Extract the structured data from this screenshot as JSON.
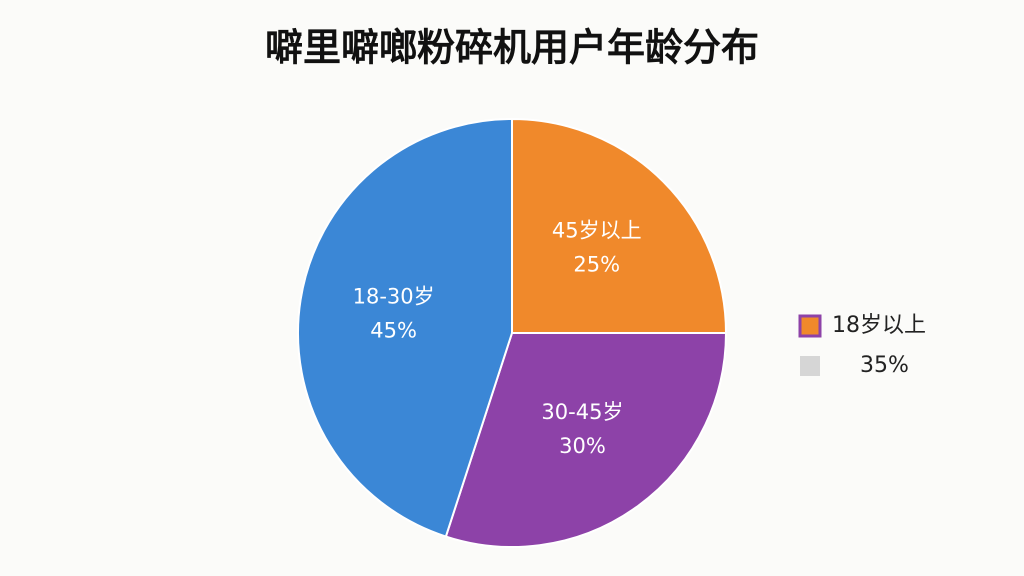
{
  "chart_data": {
    "type": "pie",
    "title": "噼里噼啷粉碎机用户年龄分布",
    "categories": [
      "45岁以上",
      "30-45岁",
      "18-30岁"
    ],
    "values": [
      25,
      30,
      45
    ],
    "value_labels": [
      "25%",
      "30%",
      "45%"
    ],
    "colors": [
      "#f0892b",
      "#8d42a8",
      "#3b87d6"
    ],
    "legend": {
      "position": "right",
      "items": [
        {
          "label": "18岁以上",
          "color": "#f0892b",
          "border": "#8d42a8"
        },
        {
          "label": "35%",
          "color": "#d6d6d6"
        }
      ]
    }
  }
}
